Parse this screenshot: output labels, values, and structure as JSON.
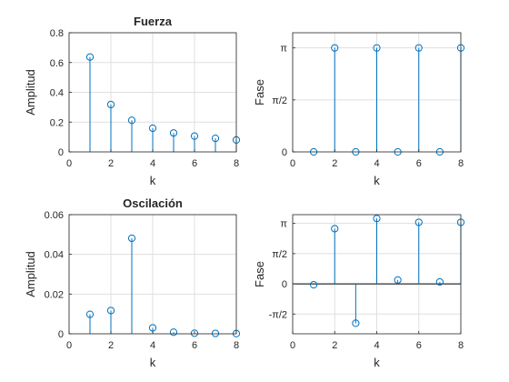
{
  "chart_data": [
    {
      "type": "stem",
      "title": "Fuerza",
      "xlabel": "k",
      "ylabel": "Amplitud",
      "xlim": [
        0,
        8
      ],
      "ylim": [
        0,
        0.8
      ],
      "grid": true,
      "xticks": [
        0,
        2,
        4,
        6,
        8
      ],
      "yticks": [
        0,
        0.2,
        0.4,
        0.6,
        0.8
      ],
      "ytick_labels": [
        "0",
        "0.2",
        "0.4",
        "0.6",
        "0.8"
      ],
      "x": [
        1,
        2,
        3,
        4,
        5,
        6,
        7,
        8
      ],
      "values": [
        0.637,
        0.318,
        0.212,
        0.159,
        0.127,
        0.106,
        0.091,
        0.08
      ],
      "color": "#0072bd"
    },
    {
      "type": "stem",
      "title": "",
      "xlabel": "k",
      "ylabel": "Fase",
      "xlim": [
        0,
        8
      ],
      "ylim": [
        0,
        3.6
      ],
      "grid": true,
      "xticks": [
        0,
        2,
        4,
        6,
        8
      ],
      "yticks": [
        0,
        1.5708,
        3.1416
      ],
      "ytick_labels": [
        "0",
        "π/2",
        "π"
      ],
      "x": [
        1,
        2,
        3,
        4,
        5,
        6,
        7,
        8
      ],
      "values": [
        0,
        3.1416,
        0,
        3.1416,
        0,
        3.1416,
        0,
        3.1416
      ],
      "color": "#0072bd"
    },
    {
      "type": "stem",
      "title": "Oscilación",
      "xlabel": "k",
      "ylabel": "Amplitud",
      "xlim": [
        0,
        8
      ],
      "ylim": [
        0,
        0.06
      ],
      "grid": true,
      "xticks": [
        0,
        2,
        4,
        6,
        8
      ],
      "yticks": [
        0,
        0.02,
        0.04,
        0.06
      ],
      "ytick_labels": [
        "0",
        "0.02",
        "0.04",
        "0.06"
      ],
      "x": [
        1,
        2,
        3,
        4,
        5,
        6,
        7,
        8
      ],
      "values": [
        0.0098,
        0.0117,
        0.0481,
        0.003,
        0.0008,
        0.0003,
        0.0002,
        0.0001
      ],
      "color": "#0072bd"
    },
    {
      "type": "stem",
      "title": "",
      "xlabel": "k",
      "ylabel": "Fase",
      "xlim": [
        0,
        8
      ],
      "ylim": [
        -2.6,
        3.6
      ],
      "grid": true,
      "xticks": [
        0,
        2,
        4,
        6,
        8
      ],
      "yticks": [
        -1.5708,
        0,
        1.5708,
        3.1416
      ],
      "ytick_labels": [
        "-π/2",
        "0",
        "π/2",
        "π"
      ],
      "x": [
        1,
        2,
        3,
        4,
        5,
        6,
        7,
        8
      ],
      "values": [
        -0.05,
        2.87,
        -2.05,
        3.4,
        0.2,
        3.2,
        0.1,
        3.2
      ],
      "color": "#0072bd"
    }
  ]
}
